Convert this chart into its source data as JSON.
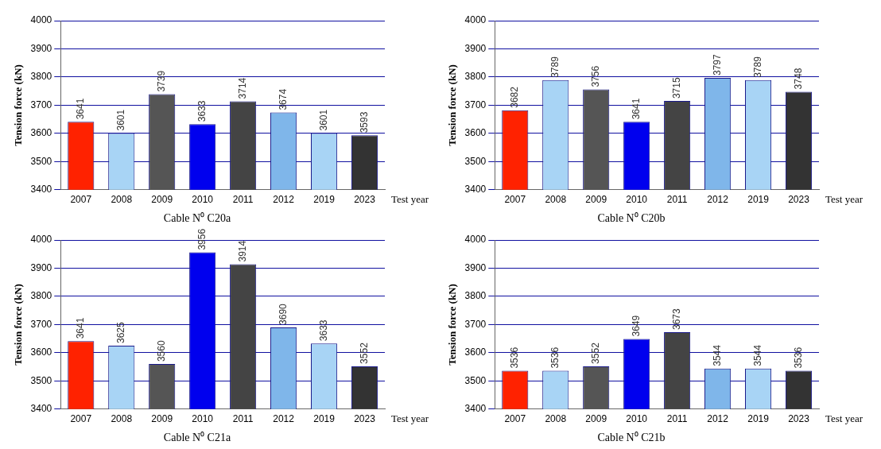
{
  "chart_data": [
    {
      "type": "bar",
      "title": "Cable N⁰ C20a",
      "xlabel": "Test year",
      "ylabel": "Tension force (kN)",
      "categories": [
        "2007",
        "2008",
        "2009",
        "2010",
        "2011",
        "2012",
        "2019",
        "2023"
      ],
      "values": [
        3641,
        3601,
        3739,
        3633,
        3714,
        3674,
        3601,
        3593
      ],
      "colors": [
        "#ff2200",
        "#a8d4f5",
        "#555555",
        "#0000ee",
        "#444444",
        "#7fb6ea",
        "#a8d4f5",
        "#333333"
      ],
      "ylim": [
        3400,
        4000
      ],
      "yticks": [
        3400,
        3500,
        3600,
        3700,
        3800,
        3900,
        4000
      ],
      "grid": "y",
      "data_labels": true
    },
    {
      "type": "bar",
      "title": "Cable N⁰ C20b",
      "xlabel": "Test year",
      "ylabel": "Tension force (kN)",
      "categories": [
        "2007",
        "2008",
        "2009",
        "2010",
        "2011",
        "2012",
        "2019",
        "2023"
      ],
      "values": [
        3682,
        3789,
        3756,
        3641,
        3715,
        3797,
        3789,
        3748
      ],
      "colors": [
        "#ff2200",
        "#a8d4f5",
        "#555555",
        "#0000ee",
        "#444444",
        "#7fb6ea",
        "#a8d4f5",
        "#333333"
      ],
      "ylim": [
        3400,
        4000
      ],
      "yticks": [
        3400,
        3500,
        3600,
        3700,
        3800,
        3900,
        4000
      ],
      "grid": "y",
      "data_labels": true
    },
    {
      "type": "bar",
      "title": "Cable N⁰ C21a",
      "xlabel": "Test year",
      "ylabel": "Tension force (kN)",
      "categories": [
        "2007",
        "2008",
        "2009",
        "2010",
        "2011",
        "2012",
        "2019",
        "2023"
      ],
      "values": [
        3641,
        3625,
        3560,
        3956,
        3914,
        3690,
        3633,
        3552
      ],
      "colors": [
        "#ff2200",
        "#a8d4f5",
        "#555555",
        "#0000ee",
        "#444444",
        "#7fb6ea",
        "#a8d4f5",
        "#333333"
      ],
      "ylim": [
        3400,
        4000
      ],
      "yticks": [
        3400,
        3500,
        3600,
        3700,
        3800,
        3900,
        4000
      ],
      "grid": "y",
      "data_labels": true
    },
    {
      "type": "bar",
      "title": "Cable N⁰ C21b",
      "xlabel": "Test year",
      "ylabel": "Tension force (kN)",
      "categories": [
        "2007",
        "2008",
        "2009",
        "2010",
        "2011",
        "2012",
        "2019",
        "2023"
      ],
      "values": [
        3536,
        3536,
        3552,
        3649,
        3673,
        3544,
        3544,
        3536
      ],
      "colors": [
        "#ff2200",
        "#a8d4f5",
        "#555555",
        "#0000ee",
        "#444444",
        "#7fb6ea",
        "#a8d4f5",
        "#333333"
      ],
      "ylim": [
        3400,
        4000
      ],
      "yticks": [
        3400,
        3500,
        3600,
        3700,
        3800,
        3900,
        4000
      ],
      "grid": "y",
      "data_labels": true
    }
  ]
}
